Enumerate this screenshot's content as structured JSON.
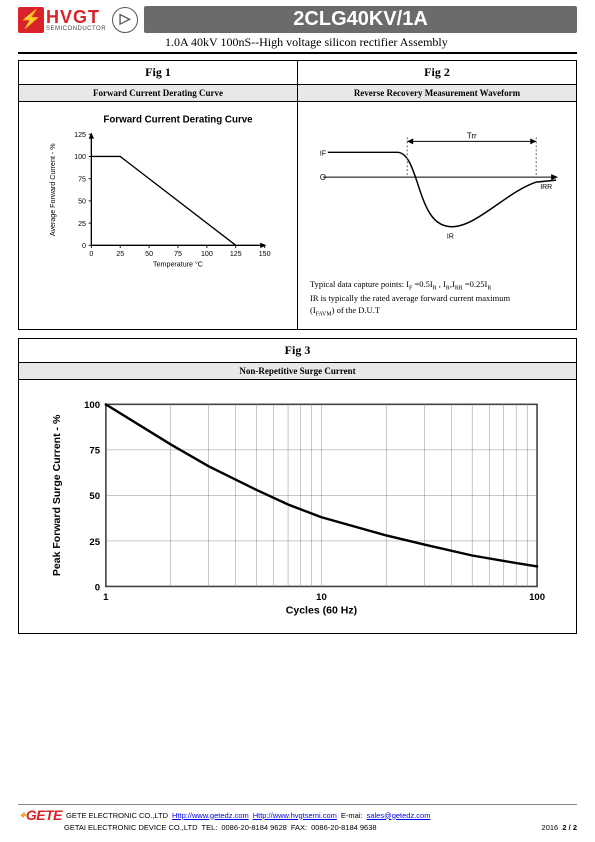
{
  "header": {
    "brand_main": "HVGT",
    "brand_sub": "SEMICONDUCTOR",
    "part_number": "2CLG40KV/1A",
    "subtitle": "1.0A 40kV 100nS--High voltage silicon rectifier Assembly"
  },
  "fig1": {
    "title": "Fig 1",
    "subtitle": "Forward Current Derating Curve",
    "chart": {
      "type": "line",
      "chart_title": "Forward Current Derating Curve",
      "title_fontsize": 11,
      "xlabel": "Temperature °C",
      "ylabel": "Average Forward Current - %",
      "label_fontsize": 8,
      "xlim": [
        0,
        150
      ],
      "ylim": [
        0,
        125
      ],
      "xtick_step": 25,
      "ytick_step": 25,
      "line_color": "#000000",
      "line_width": 1.5,
      "background_color": "#ffffff",
      "axis_color": "#000000",
      "tick_fontsize": 8,
      "points": [
        [
          0,
          100
        ],
        [
          25,
          100
        ],
        [
          125,
          0
        ]
      ]
    }
  },
  "fig2": {
    "title": "Fig 2",
    "subtitle": "Reverse Recovery Measurement Waveform",
    "waveform": {
      "type": "waveform",
      "labels": {
        "if": "IF",
        "zero": "O",
        "ir": "IR",
        "irr": "IRR",
        "trr": "Trr"
      },
      "line_color": "#000000",
      "dash_color": "#666666",
      "line_width": 1.5,
      "background_color": "#ffffff"
    },
    "caption_line1": "Typical data capture points: IF =0.5IR , IR,IRR =0.25IR",
    "caption_line2": "IR is typically the rated average forward current maximum",
    "caption_line3": "(IFAVM) of the D.U.T"
  },
  "fig3": {
    "title": "Fig 3",
    "subtitle": "Non-Repetitive Surge Current",
    "chart": {
      "type": "line-logx",
      "xlabel": "Cycles (60 Hz)",
      "ylabel": "Peak Forward Surge Current - %",
      "label_fontsize": 11,
      "xlim": [
        1,
        100
      ],
      "ylim": [
        0,
        100
      ],
      "ytick_step": 25,
      "xticks": [
        1,
        10,
        100
      ],
      "minor_grid": true,
      "line_color": "#000000",
      "line_width": 2.5,
      "grid_color": "#888888",
      "background_color": "#ffffff",
      "axis_color": "#000000",
      "tick_fontsize": 10,
      "points": [
        [
          1,
          100
        ],
        [
          2,
          78
        ],
        [
          3,
          66
        ],
        [
          5,
          53
        ],
        [
          7,
          45
        ],
        [
          10,
          38
        ],
        [
          20,
          28
        ],
        [
          30,
          23
        ],
        [
          50,
          17
        ],
        [
          70,
          14
        ],
        [
          100,
          11
        ]
      ]
    }
  },
  "footer": {
    "company1": "GETE ELECTRONIC CO.,LTD",
    "url1": "Http://www.getedz.com",
    "url2": "Http://www.hvgtsemi.com",
    "email_label": "E-mai:",
    "email": "sales@getedz.com",
    "company2": "GETAI ELECTRONIC DEVICE CO.,LTD",
    "tel_label": "TEL:",
    "tel": "0086-20-8184 9628",
    "fax_label": "FAX:",
    "fax": "0086-20-8184 9638",
    "year": "2016",
    "page": "2 / 2",
    "logo_text": "GETE"
  }
}
